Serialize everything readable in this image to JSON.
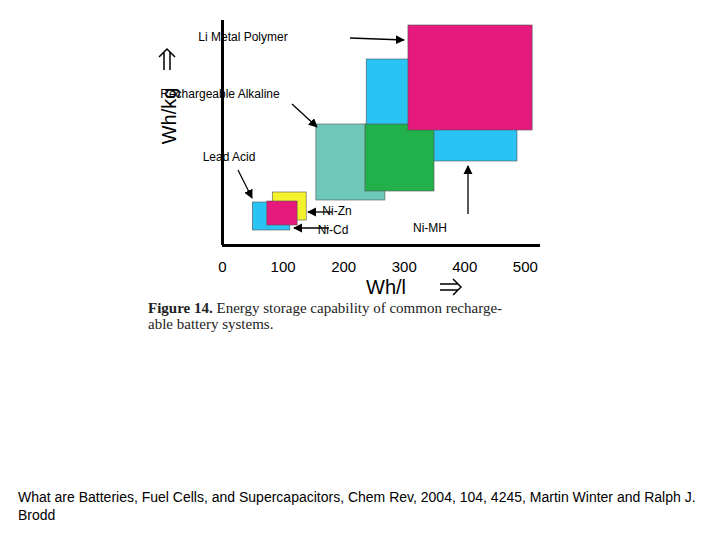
{
  "chart_data": {
    "type": "rect",
    "x_label": "Wh/l",
    "y_label": "Wh/kg",
    "xlim": [
      0,
      525
    ],
    "ylim": [
      0,
      225
    ],
    "xticks": [
      0,
      100,
      200,
      300,
      400,
      500
    ],
    "yticks": [],
    "tick_labels": "x",
    "series": [
      {
        "name": "Lead Acid",
        "color": "#29c4f4",
        "x1": 50,
        "x2": 112,
        "y1": 15,
        "y2": 43
      },
      {
        "name": "Ni-Zn",
        "color": "#f4f22a",
        "x1": 83,
        "x2": 139,
        "y1": 25,
        "y2": 53
      },
      {
        "name": "Ni-Cd",
        "color": "#e6197d",
        "x1": 74,
        "x2": 124,
        "y1": 20,
        "y2": 44
      },
      {
        "name": "Rechargeable Alkaline",
        "color": "#6fc9b8",
        "x1": 155,
        "x2": 269,
        "y1": 45,
        "y2": 121
      },
      {
        "name": "Ni-MH",
        "color": "#29c4f4",
        "x1": 238,
        "x2": 487,
        "y1": 84,
        "y2": 186
      },
      {
        "name": null,
        "color": "#22b04b",
        "x1": 236,
        "x2": 350,
        "y1": 54,
        "y2": 121
      },
      {
        "name": "Li Metal Polymer",
        "color": "#e6197d",
        "x1": 307,
        "x2": 512,
        "y1": 115,
        "y2": 220
      }
    ]
  },
  "figure_caption": {
    "label": "Figure 14.",
    "lines": [
      "Energy storage capability of common recharge-",
      "able battery systems."
    ]
  },
  "source": "What are Batteries, Fuel Cells, and Supercapacitors, Chem Rev, 2004, 104, 4245, Martin Winter and Ralph J. Brodd"
}
